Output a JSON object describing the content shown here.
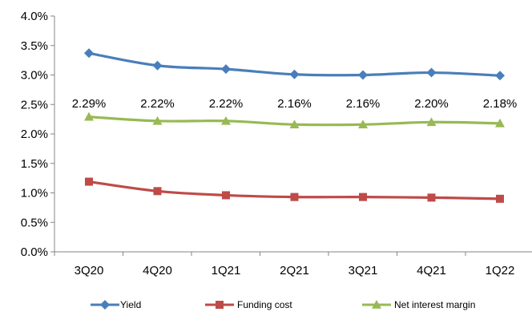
{
  "chart_data": {
    "type": "line",
    "categories": [
      "3Q20",
      "4Q20",
      "1Q21",
      "2Q21",
      "3Q21",
      "4Q21",
      "1Q22"
    ],
    "ylim": [
      0,
      4.0
    ],
    "y_ticks": [
      "0.0%",
      "0.5%",
      "1.0%",
      "1.5%",
      "2.0%",
      "2.5%",
      "3.0%",
      "3.5%",
      "4.0%"
    ],
    "y_tick_values": [
      0,
      0.5,
      1.0,
      1.5,
      2.0,
      2.5,
      3.0,
      3.5,
      4.0
    ],
    "grid": false,
    "legend_position": "bottom",
    "series": [
      {
        "name": "Yield",
        "values": [
          3.37,
          3.16,
          3.1,
          3.01,
          3.0,
          3.04,
          2.99
        ],
        "color": "#4a7ebb",
        "marker": "diamond",
        "labels": []
      },
      {
        "name": "Funding cost",
        "values": [
          1.19,
          1.03,
          0.96,
          0.93,
          0.93,
          0.92,
          0.9
        ],
        "color": "#be4b48",
        "marker": "square",
        "labels": []
      },
      {
        "name": "Net interest margin",
        "values": [
          2.29,
          2.22,
          2.22,
          2.16,
          2.16,
          2.2,
          2.18
        ],
        "color": "#98b954",
        "marker": "triangle",
        "labels": [
          "2.29%",
          "2.22%",
          "2.22%",
          "2.16%",
          "2.16%",
          "2.20%",
          "2.18%"
        ]
      }
    ]
  }
}
